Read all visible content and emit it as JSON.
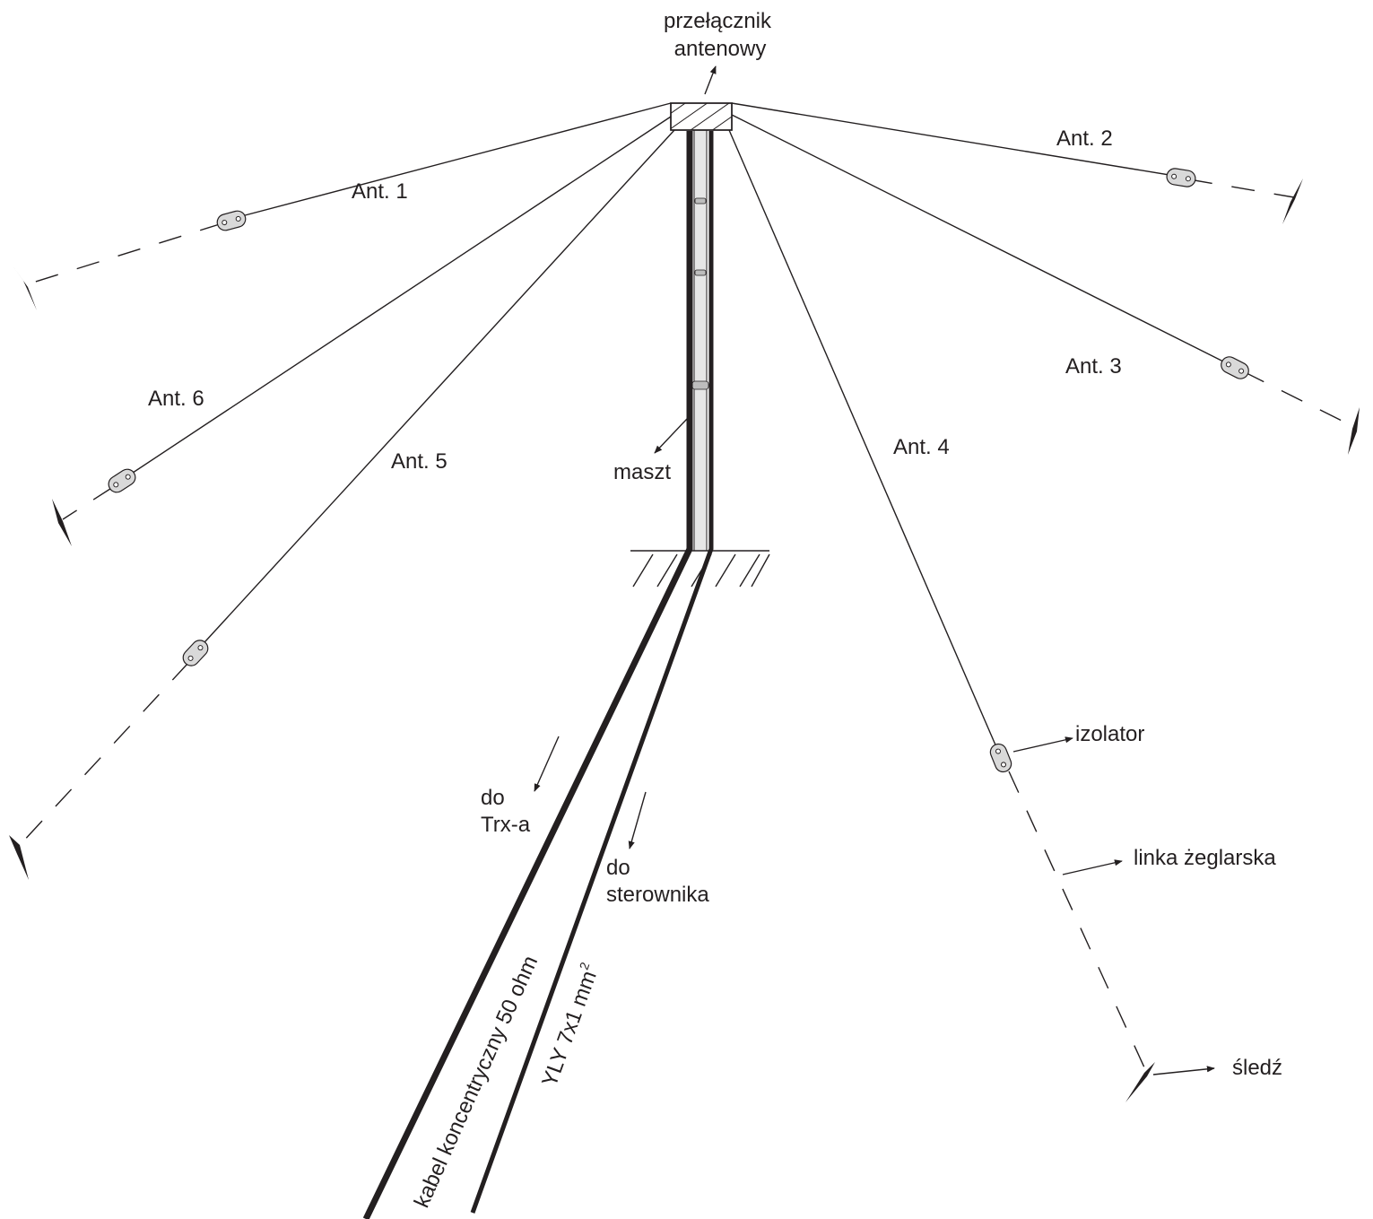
{
  "labels": {
    "switch_line1": "przełącznik",
    "switch_line2": "antenowy",
    "ant1": "Ant. 1",
    "ant2": "Ant. 2",
    "ant3": "Ant. 3",
    "ant4": "Ant. 4",
    "ant5": "Ant. 5",
    "ant6": "Ant. 6",
    "mast": "maszt",
    "insulator": "izolator",
    "rope": "linka żeglarska",
    "peg": "śledź",
    "to_trx_line1": "do",
    "to_trx_line2": "Trx-a",
    "to_controller_line1": "do",
    "to_controller_line2": "sterownika",
    "coax_cable": "kabel koncentryczny 50 ohm",
    "control_cable": "YLY 7x1 mm",
    "control_cable_superscript": "2"
  },
  "colors": {
    "ink": "#231f20",
    "insulator_fill": "#d9d9d9",
    "mast_fill": "#e6e6e6"
  }
}
